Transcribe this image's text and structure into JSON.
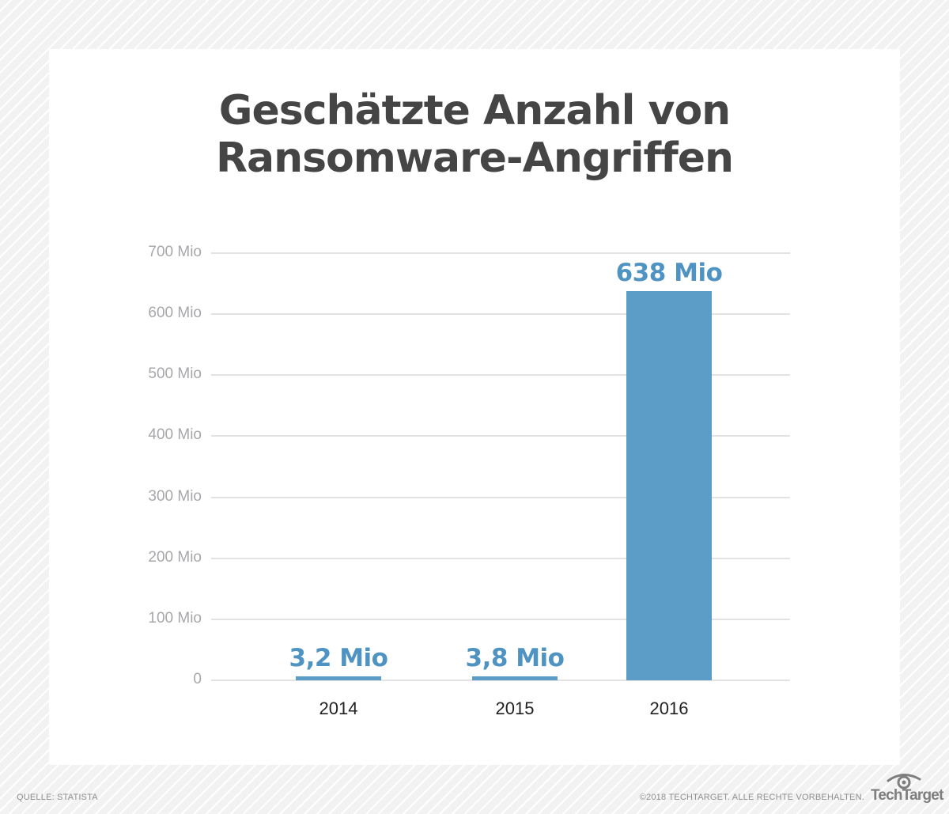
{
  "colors": {
    "bar": "#5b9dc7",
    "bar_label": "#4f93c2",
    "title": "#454545",
    "axis_label": "#a7a7ab",
    "gridline": "#e2e2e2",
    "background_pattern": "#f2f2f2",
    "card": "#ffffff",
    "footer_text": "#8f8f93"
  },
  "header": {
    "title_line1": "Geschätzte Anzahl von",
    "title_line2": "Ransomware-Angriffen"
  },
  "axis": {
    "y_ticks": [
      "0",
      "100 Mio",
      "200 Mio",
      "300 Mio",
      "400 Mio",
      "500 Mio",
      "600 Mio",
      "700 Mio"
    ]
  },
  "bars": [
    {
      "year": "2014",
      "label": "3,2 Mio"
    },
    {
      "year": "2015",
      "label": "3,8 Mio"
    },
    {
      "year": "2016",
      "label": "638 Mio"
    }
  ],
  "footer": {
    "source": "QUELLE: STATISTA",
    "copyright": "©2018 TECHTARGET. ALLE RECHTE VORBEHALTEN.",
    "logo_text": "TechTarget",
    "logo_icon": "eye-icon"
  },
  "chart_data": {
    "type": "bar",
    "title": "Geschätzte Anzahl von Ransomware-Angriffen",
    "categories": [
      "2014",
      "2015",
      "2016"
    ],
    "values": [
      3.2,
      3.8,
      638
    ],
    "value_labels": [
      "3,2 Mio",
      "3,8 Mio",
      "638 Mio"
    ],
    "xlabel": "",
    "ylabel": "",
    "unit": "Mio",
    "ylim": [
      0,
      700
    ],
    "y_ticks": [
      0,
      100,
      200,
      300,
      400,
      500,
      600,
      700
    ],
    "y_tick_labels": [
      "0",
      "100 Mio",
      "200 Mio",
      "300 Mio",
      "400 Mio",
      "500 Mio",
      "600 Mio",
      "700 Mio"
    ],
    "grid": true,
    "legend": null,
    "source": "QUELLE: STATISTA"
  }
}
